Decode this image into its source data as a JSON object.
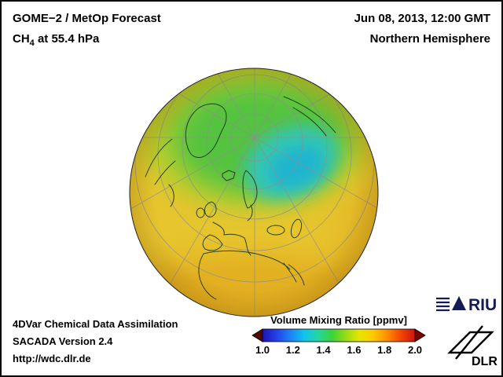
{
  "header": {
    "product_line1": "GOME−2 / MetOp Forecast",
    "species_prefix": "CH",
    "species_subscript": "4",
    "species_suffix": " at 55.4 hPa",
    "datetime": "Jun 08, 2013, 12:00 GMT",
    "region": "Northern Hemisphere"
  },
  "footer": {
    "line1": "4DVar Chemical Data Assimilation",
    "line2": "SACADA Version 2.4",
    "line3": "http://wdc.dlr.de"
  },
  "colorbar": {
    "title": "Volume Mixing Ratio [ppmv]",
    "min": 1.0,
    "max": 2.0,
    "ticks": [
      "1.0",
      "1.2",
      "1.4",
      "1.6",
      "1.8",
      "2.0"
    ],
    "gradient": [
      "#1c14b4",
      "#2341e8",
      "#1e82f5",
      "#0fc3f0",
      "#23d7a0",
      "#3cd23c",
      "#96dc14",
      "#e6e600",
      "#ffc800",
      "#ff8c00",
      "#f04600",
      "#cd1414"
    ],
    "under_color": "#4f0a05",
    "over_color": "#820000"
  },
  "globe": {
    "description": "Northern Hemisphere orthographic globe showing CH4 volume mixing ratio field with coastlines and lat/lon graticule",
    "colors": {
      "base_yellow": "#e7c52f",
      "yellow_green": "#b5cf2e",
      "green": "#4fc341",
      "cyan": "#2fc6c3",
      "teal_core": "#1eb2d4",
      "limb_orange": "#de9e17"
    }
  },
  "logos": {
    "riu_text": "RIU",
    "dlr_text": "DLR"
  },
  "chart_data": {
    "type": "heatmap",
    "title": "GOME−2 / MetOp Forecast CH4 at 55.4 hPa, Jun 08, 2013, 12:00 GMT, Northern Hemisphere",
    "colorbar_label": "Volume Mixing Ratio [ppmv]",
    "colorbar_range": [
      1.0,
      2.0
    ],
    "colorbar_tick_values": [
      1.0,
      1.2,
      1.4,
      1.6,
      1.8,
      2.0
    ],
    "qualitative_field": [
      {
        "region": "Scandinavia / Barents area (cyan patch)",
        "approx_value_ppmv": "1.2-1.3"
      },
      {
        "region": "polar cap (green area)",
        "approx_value_ppmv": "1.3-1.5"
      },
      {
        "region": "mid and low latitudes (yellow)",
        "approx_value_ppmv": "1.6-1.7"
      },
      {
        "region": "lower limb (orange tint)",
        "approx_value_ppmv": "1.7-1.8"
      }
    ]
  }
}
